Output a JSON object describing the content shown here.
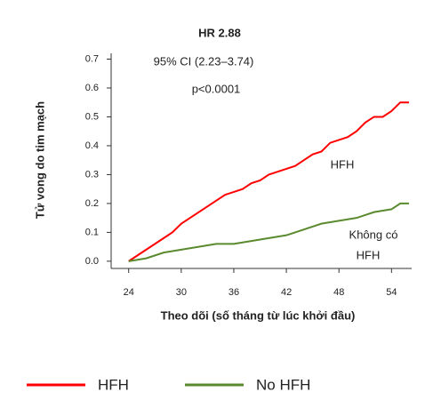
{
  "chart_data": {
    "type": "line",
    "annotations": [
      "HR 2.88",
      "95% CI (2.23–3.74)",
      "p<0.0001",
      "HFH",
      "Không có",
      "HFH"
    ],
    "xlabel": "Theo dõi (số tháng từ lúc khởi đầu)",
    "ylabel": "Tử vong do tim mạch",
    "x": [
      24,
      25,
      26,
      27,
      28,
      29,
      30,
      31,
      32,
      33,
      34,
      35,
      36,
      37,
      38,
      39,
      40,
      41,
      42,
      43,
      44,
      45,
      46,
      47,
      48,
      49,
      50,
      51,
      52,
      53,
      54,
      55,
      56
    ],
    "series": [
      {
        "name": "HFH",
        "color": "#ff0000",
        "values": [
          0,
          0.02,
          0.04,
          0.06,
          0.08,
          0.1,
          0.13,
          0.15,
          0.17,
          0.19,
          0.21,
          0.23,
          0.24,
          0.25,
          0.27,
          0.28,
          0.3,
          0.31,
          0.32,
          0.33,
          0.35,
          0.37,
          0.38,
          0.41,
          0.42,
          0.43,
          0.45,
          0.48,
          0.5,
          0.5,
          0.52,
          0.55,
          0.55
        ]
      },
      {
        "name": "No HFH",
        "color": "#5b8a2e",
        "values": [
          0,
          0.005,
          0.01,
          0.02,
          0.03,
          0.035,
          0.04,
          0.045,
          0.05,
          0.055,
          0.06,
          0.06,
          0.06,
          0.065,
          0.07,
          0.075,
          0.08,
          0.085,
          0.09,
          0.1,
          0.11,
          0.12,
          0.13,
          0.135,
          0.14,
          0.145,
          0.15,
          0.16,
          0.17,
          0.175,
          0.18,
          0.2,
          0.2
        ]
      }
    ],
    "xlim": [
      22,
      56.3
    ],
    "xticks": [
      24,
      30,
      36,
      42,
      48,
      54
    ],
    "ylim": [
      -0.025,
      0.72
    ],
    "yticks": [
      {
        "value": 0,
        "label": "0.0"
      },
      {
        "value": 0.1,
        "label": "0.1"
      },
      {
        "value": 0.2,
        "label": "0.2"
      },
      {
        "value": 0.3,
        "label": "0.3"
      },
      {
        "value": 0.4,
        "label": "0.4"
      },
      {
        "value": 0.5,
        "label": "0.5"
      },
      {
        "value": 0.6,
        "label": "0.6"
      },
      {
        "value": 0.7,
        "label": "0.7"
      }
    ],
    "legend": "bottom"
  }
}
